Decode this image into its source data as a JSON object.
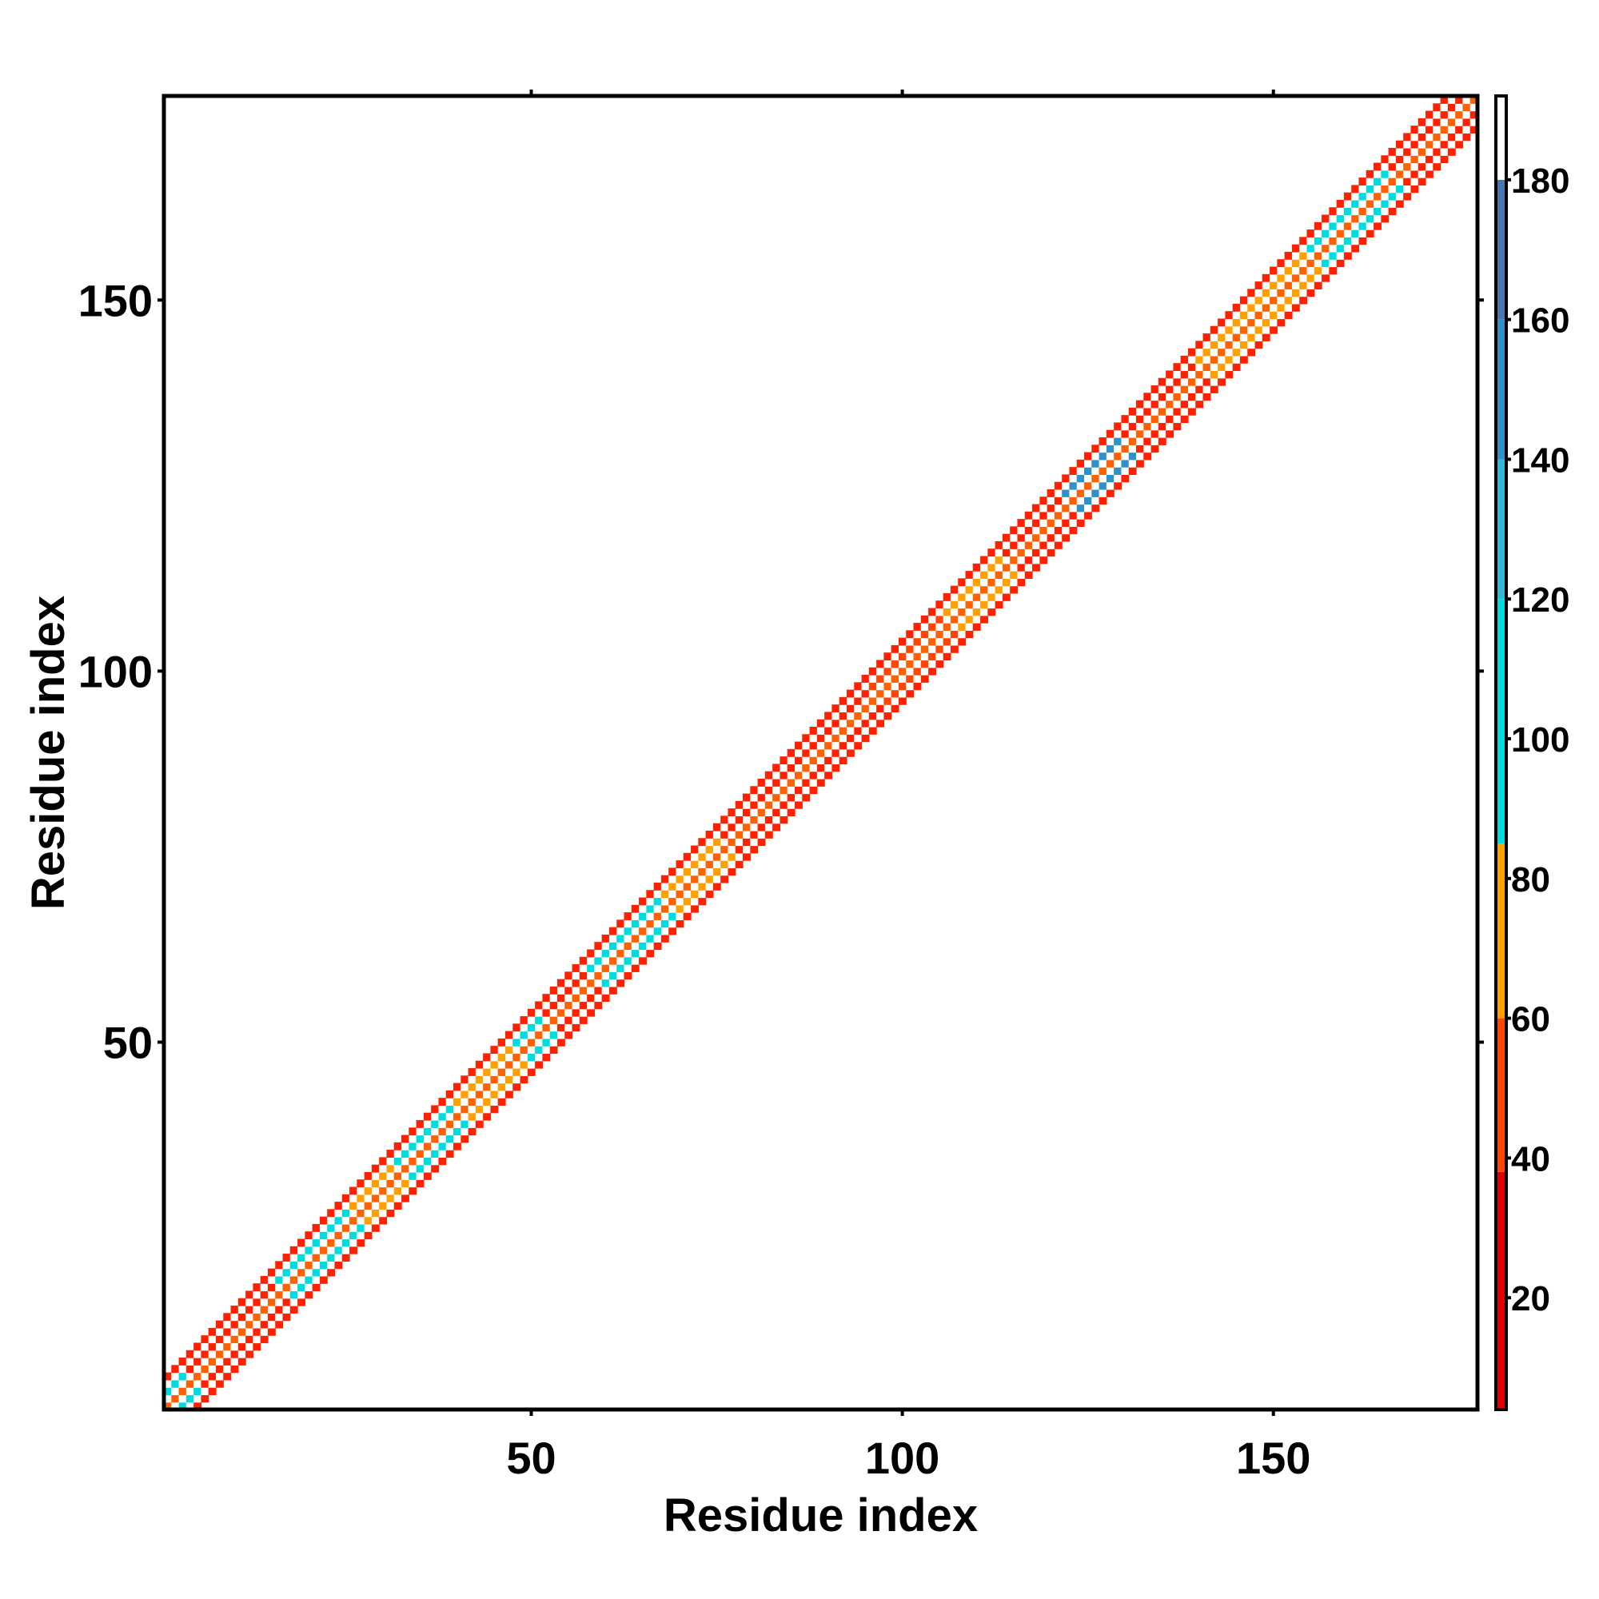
{
  "chart_data": {
    "type": "heatmap",
    "title": "",
    "xlabel": "Residue index",
    "ylabel": "Residue index",
    "xlim": [
      1,
      177
    ],
    "ylim": [
      1,
      177
    ],
    "x_ticks": [
      50,
      100,
      150
    ],
    "y_ticks": [
      50,
      100,
      150
    ],
    "grid": false,
    "legend": "colorbar right",
    "band_halfwidth": 4,
    "colorbar": {
      "range": [
        4,
        192
      ],
      "ticks": [
        20,
        40,
        60,
        80,
        100,
        120,
        140,
        160,
        180
      ],
      "segments": [
        {
          "from": 4,
          "to": 38,
          "color": "#e00000"
        },
        {
          "from": 38,
          "to": 60,
          "color": "#ff4500"
        },
        {
          "from": 60,
          "to": 85,
          "color": "#ffa000"
        },
        {
          "from": 85,
          "to": 120,
          "color": "#00dcdc"
        },
        {
          "from": 120,
          "to": 140,
          "color": "#30b8d8"
        },
        {
          "from": 140,
          "to": 160,
          "color": "#3090c8"
        },
        {
          "from": 160,
          "to": 180,
          "color": "#4878b0"
        },
        {
          "from": 180,
          "to": 192,
          "color": "#ffffff"
        }
      ]
    },
    "region_colors": [
      {
        "start": 1,
        "end": 4,
        "color": "#00dcdc"
      },
      {
        "start": 5,
        "end": 16,
        "color": "#ff2000"
      },
      {
        "start": 17,
        "end": 26,
        "color": "#00dcdc"
      },
      {
        "start": 27,
        "end": 32,
        "color": "#ffa000"
      },
      {
        "start": 33,
        "end": 40,
        "color": "#00dcdc"
      },
      {
        "start": 41,
        "end": 48,
        "color": "#ffa000"
      },
      {
        "start": 49,
        "end": 52,
        "color": "#00dcdc"
      },
      {
        "start": 53,
        "end": 58,
        "color": "#ff2000"
      },
      {
        "start": 59,
        "end": 68,
        "color": "#00dcdc"
      },
      {
        "start": 69,
        "end": 76,
        "color": "#ffa000"
      },
      {
        "start": 77,
        "end": 84,
        "color": "#ff2000"
      },
      {
        "start": 85,
        "end": 96,
        "color": "#ff2000"
      },
      {
        "start": 97,
        "end": 106,
        "color": "#ff4500"
      },
      {
        "start": 107,
        "end": 114,
        "color": "#ffa000"
      },
      {
        "start": 115,
        "end": 122,
        "color": "#ff2000"
      },
      {
        "start": 123,
        "end": 130,
        "color": "#3090c8"
      },
      {
        "start": 131,
        "end": 140,
        "color": "#ff2000"
      },
      {
        "start": 141,
        "end": 155,
        "color": "#ffa000"
      },
      {
        "start": 156,
        "end": 166,
        "color": "#00dcdc"
      },
      {
        "start": 167,
        "end": 177,
        "color": "#ff2000"
      }
    ]
  }
}
